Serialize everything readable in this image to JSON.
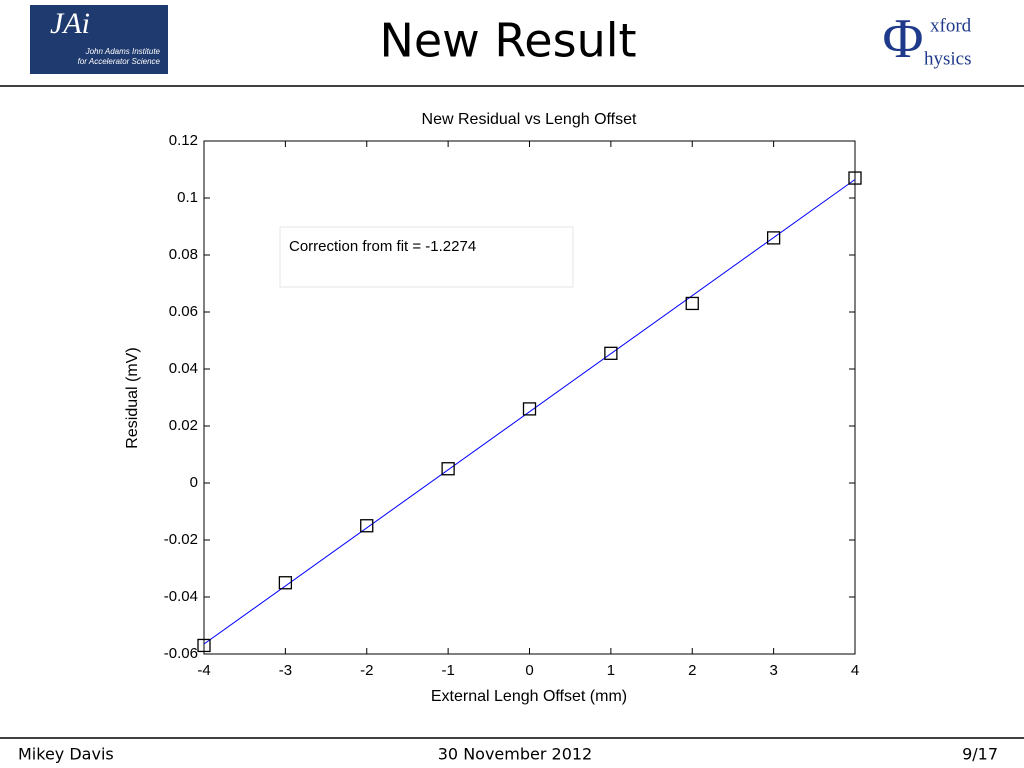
{
  "slide": {
    "title": "New Result",
    "jai_logo": {
      "mark": "JAi",
      "lines": [
        "John Adams Institute",
        "for Accelerator Science"
      ]
    },
    "oxford_logo": {
      "symbol": "Φ",
      "lines": [
        "xford",
        "hysics"
      ]
    },
    "footer": {
      "author": "Mikey Davis",
      "date": "30 November 2012",
      "page": "9/17"
    }
  },
  "chart_data": {
    "type": "scatter",
    "title": "New Residual vs Lengh Offset",
    "x_label": "External Lengh Offset (mm)",
    "y_label": "Residual (mV)",
    "annotation": "Correction from fit = -1.2274",
    "series": [
      {
        "type": "scatter",
        "marker": "square",
        "color": "#000000",
        "x": [
          -4,
          -3,
          -2,
          -1,
          0,
          1,
          2,
          3,
          4
        ],
        "values": [
          -0.057,
          -0.035,
          -0.015,
          0.005,
          0.026,
          0.0455,
          0.063,
          0.086,
          0.107
        ]
      },
      {
        "type": "line",
        "color": "#0000ff",
        "x": [
          -4,
          4
        ],
        "values": [
          -0.0565,
          0.1065
        ]
      }
    ],
    "xlim": [
      -4,
      4
    ],
    "xticks": [
      -4,
      -3,
      -2,
      -1,
      0,
      1,
      2,
      3,
      4
    ],
    "ylim": [
      -0.06,
      0.12
    ],
    "yticks": [
      -0.06,
      -0.04,
      -0.02,
      0,
      0.02,
      0.04,
      0.06,
      0.08,
      0.1,
      0.12
    ],
    "grid": false
  }
}
